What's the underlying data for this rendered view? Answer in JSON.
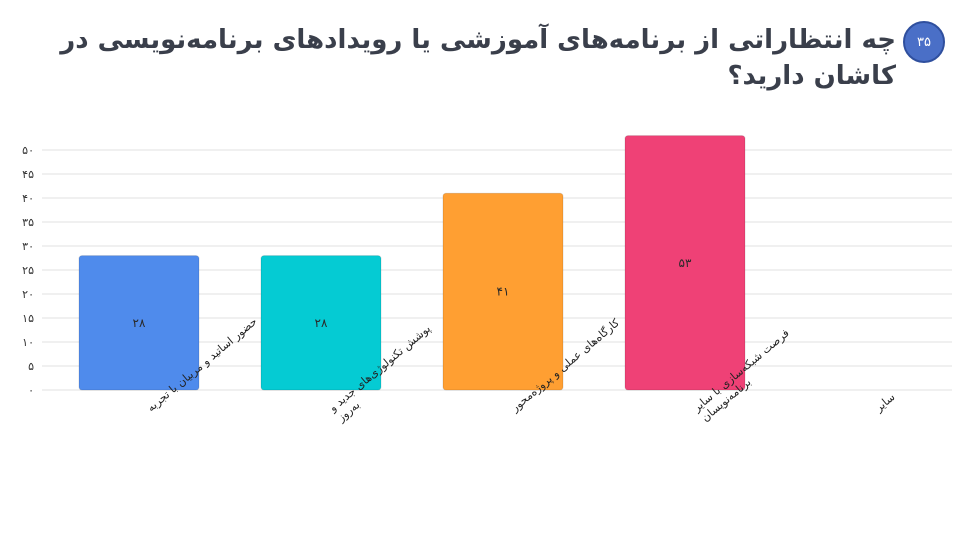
{
  "question": {
    "number": "۳۵",
    "title": "چه انتظاراتی از برنامه‌های آموزشی یا رویدادهای برنامه‌نویسی در کاشان دارید؟"
  },
  "chart_data": {
    "type": "bar",
    "categories": [
      [
        "حضور اساتید و مربیان با تجربه"
      ],
      [
        "پوشش تکنولوژی‌های جدید و",
        "به‌روز"
      ],
      [
        "کارگاه‌های عملی و پروژه‌محور"
      ],
      [
        "فرصت شبکه‌سازی با سایر",
        "برنامه‌نویسان"
      ],
      [
        "سایر"
      ]
    ],
    "values": [
      28,
      28,
      41,
      53,
      0
    ],
    "value_labels": [
      "۲۸",
      "۲۸",
      "۴۱",
      "۵۳",
      ""
    ],
    "colors": [
      "#4f8bec",
      "#05cbd3",
      "#ff9f32",
      "#ef4176",
      "#999999"
    ],
    "yticks": [
      0,
      5,
      10,
      15,
      20,
      25,
      30,
      35,
      40,
      45,
      50
    ],
    "ytick_labels": [
      "۰",
      "۵",
      "۱۰",
      "۱۵",
      "۲۰",
      "۲۵",
      "۳۰",
      "۳۵",
      "۴۰",
      "۴۵",
      "۵۰"
    ],
    "ylim": [
      0,
      50
    ],
    "grid": true,
    "legend": "none"
  }
}
